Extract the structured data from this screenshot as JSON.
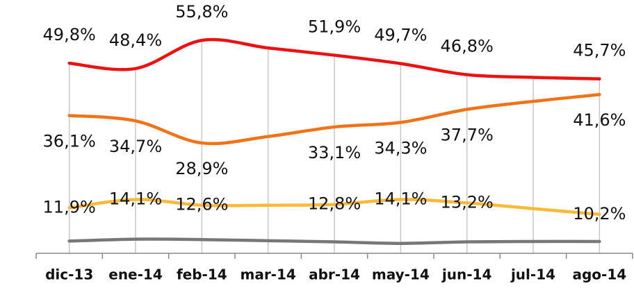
{
  "chart_data": {
    "type": "line",
    "categories": [
      "dic-13",
      "ene-14",
      "feb-14",
      "mar-14",
      "abr-14",
      "may-14",
      "jun-14",
      "jul-14",
      "ago-14"
    ],
    "ylim": [
      0,
      65
    ],
    "series": [
      {
        "color": "#ee1111",
        "values": [
          49.8,
          48.4,
          55.8,
          53.8,
          51.9,
          49.7,
          46.8,
          46.1,
          45.7
        ],
        "value_labels": [
          "49,8%",
          "48,4%",
          "55,8%",
          null,
          "51,9%",
          "49,7%",
          "46,8%",
          null,
          "45,7%"
        ]
      },
      {
        "color": "#f47216",
        "values": [
          36.1,
          34.7,
          28.9,
          30.6,
          33.1,
          34.3,
          37.7,
          39.8,
          41.6
        ],
        "value_labels": [
          "36,1%",
          "34,7%",
          "28,9%",
          null,
          "33,1%",
          "34,3%",
          "37,7%",
          null,
          "41,6%"
        ]
      },
      {
        "color": "#fbb934",
        "values": [
          11.9,
          14.1,
          12.6,
          12.6,
          12.8,
          14.1,
          13.2,
          11.7,
          10.2
        ],
        "value_labels": [
          "11,9%",
          "14,1%",
          "12,6%",
          null,
          "12,8%",
          "14,1%",
          "13,2%",
          null,
          "10,2%"
        ]
      },
      {
        "color": "#777777",
        "values": [
          3.2,
          3.7,
          3.6,
          3.3,
          3.0,
          2.6,
          3.0,
          3.1,
          3.1
        ]
      }
    ]
  }
}
